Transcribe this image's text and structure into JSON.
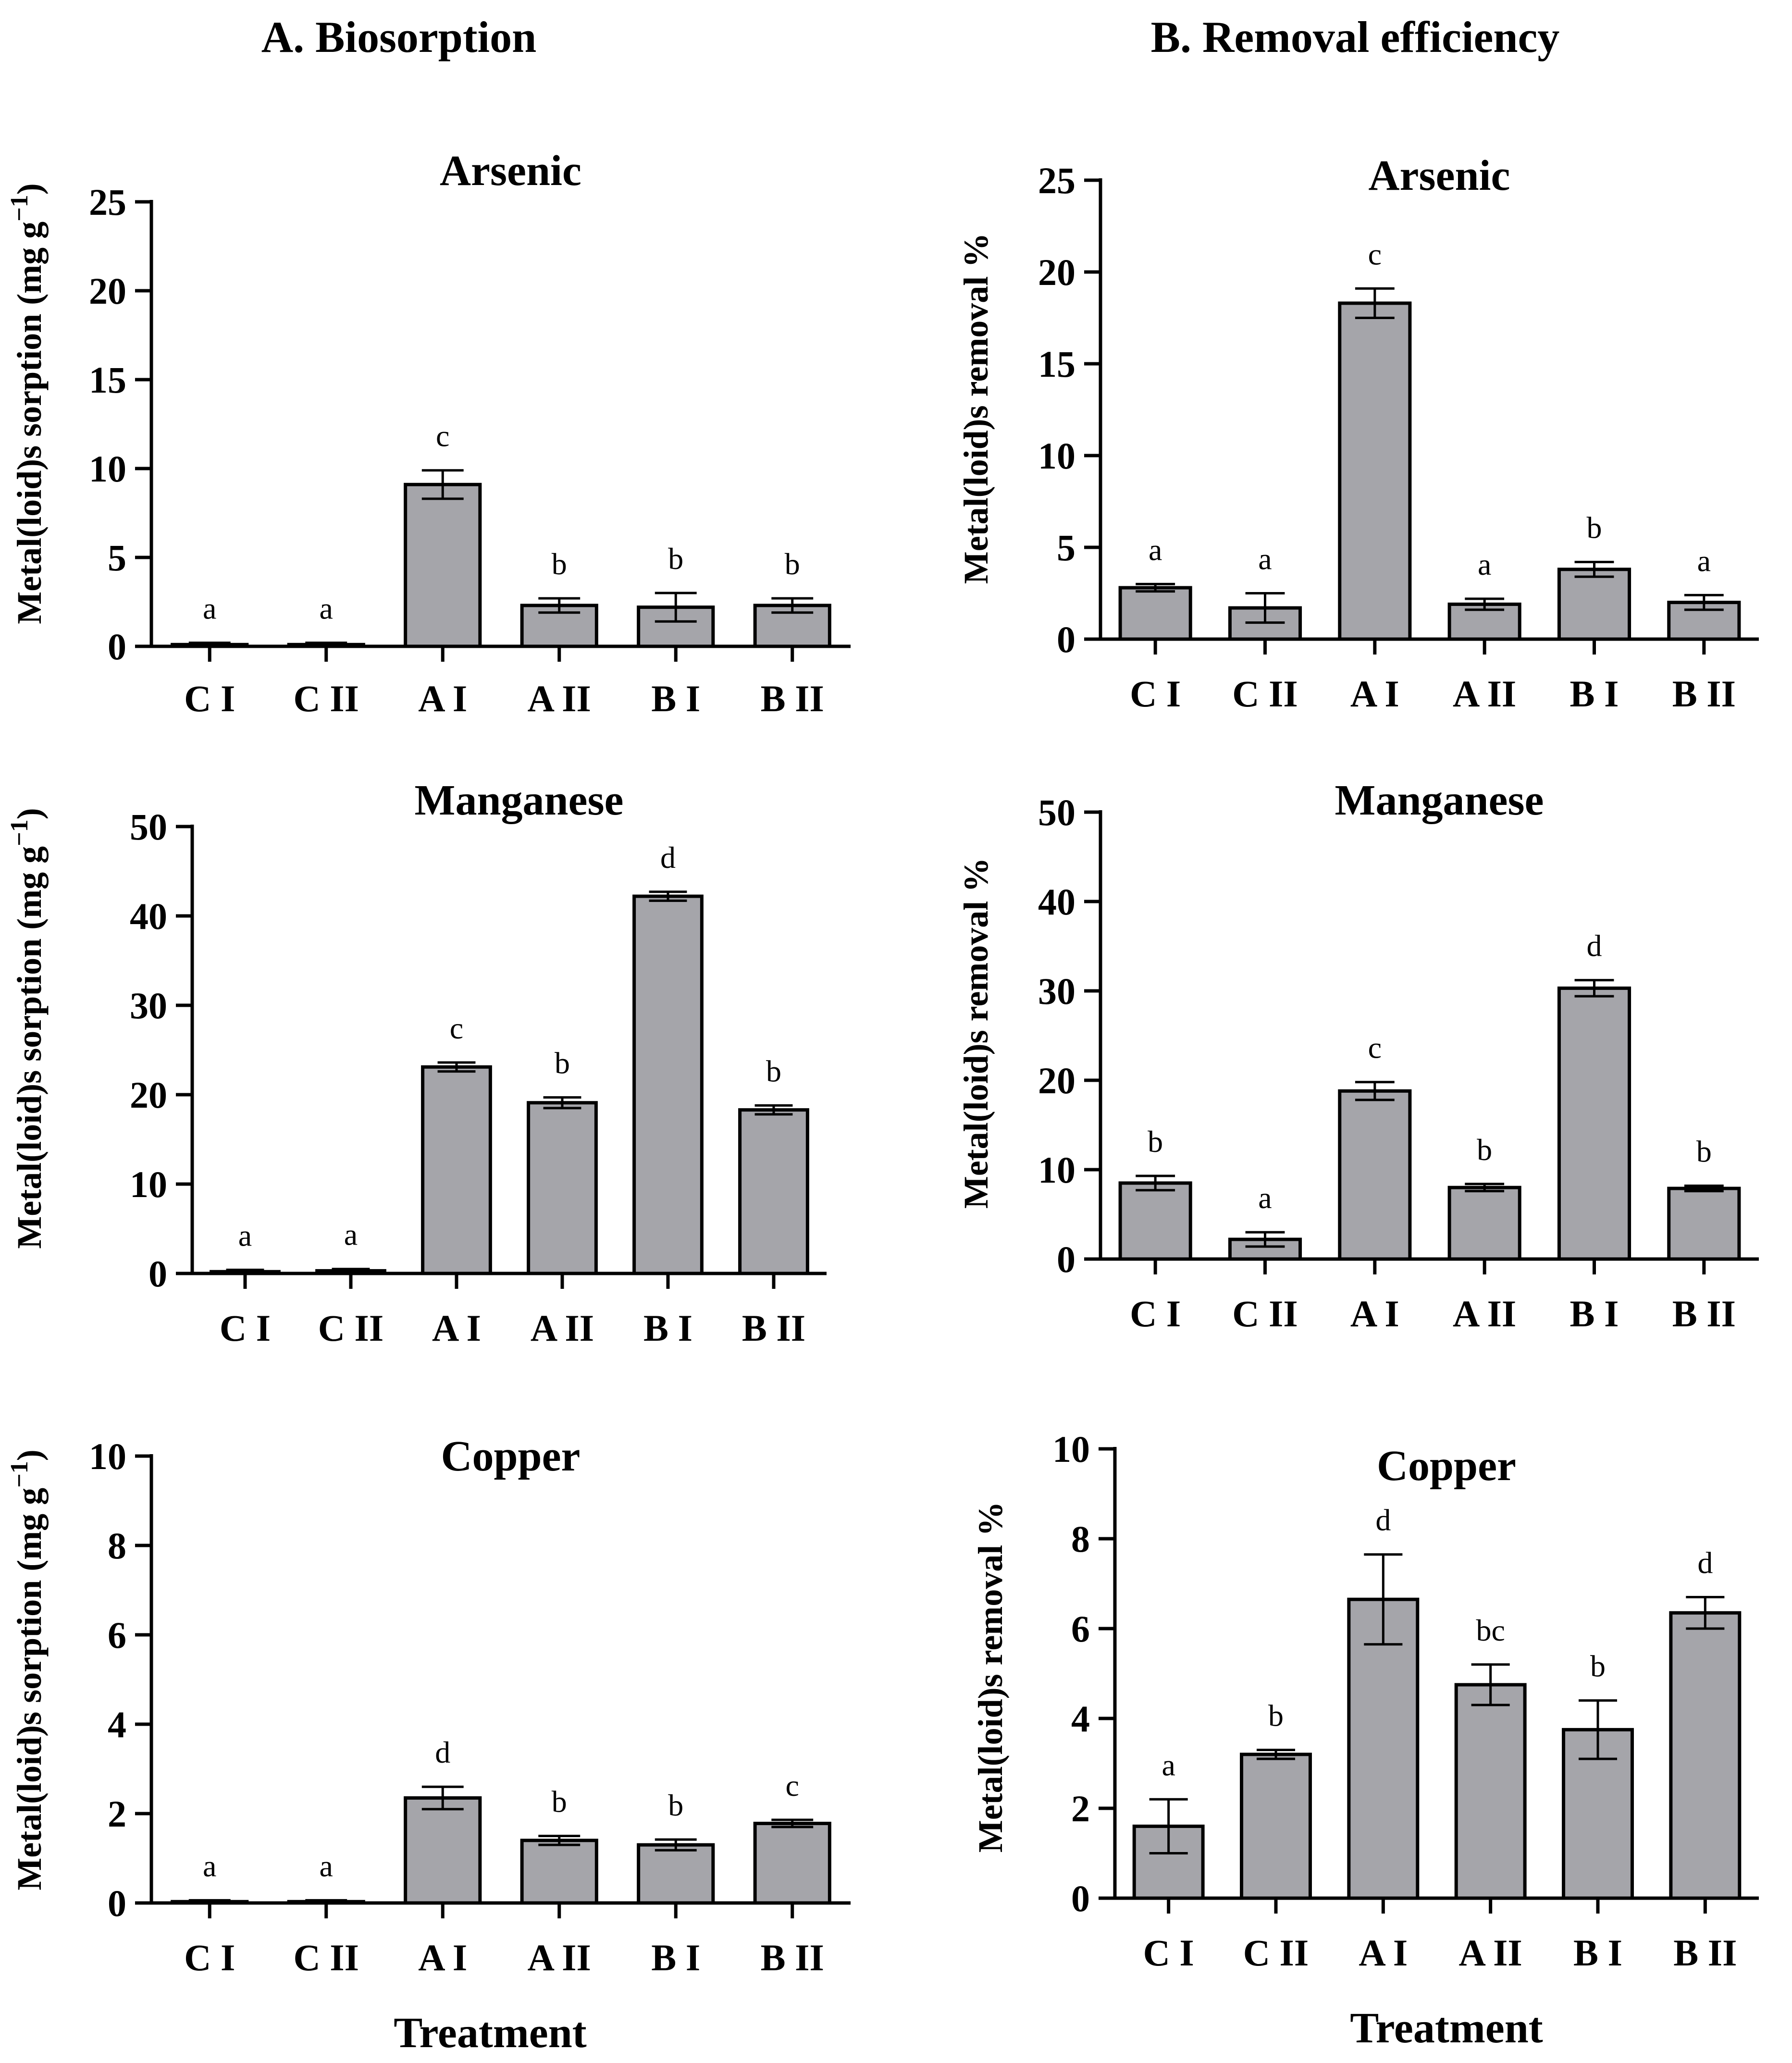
{
  "columns": [
    {
      "title": "A. Biosorption",
      "ylabel": "Metal(loid)s sorption (mg g",
      "ylabel_sup": "−1",
      "ylabel_end": ")",
      "xlabel": "Treatment"
    },
    {
      "title": "B. Removal efficiency",
      "ylabel": "Metal(loid)s removal %",
      "ylabel_sup": "",
      "ylabel_end": "",
      "xlabel": "Treatment"
    }
  ],
  "chart_data": [
    {
      "type": "bar",
      "title": "Arsenic",
      "xlabel": "",
      "ylabel": "Metal(loid)s sorption (mg g−1)",
      "categories": [
        "C I",
        "C II",
        "A I",
        "A II",
        "B I",
        "B II"
      ],
      "values": [
        0.1,
        0.1,
        9.1,
        2.3,
        2.2,
        2.3
      ],
      "errors": [
        0.1,
        0.1,
        0.8,
        0.4,
        0.8,
        0.4
      ],
      "letters": [
        "a",
        "a",
        "c",
        "b",
        "b",
        "b"
      ],
      "ylim": [
        0,
        25
      ],
      "yticks": [
        0,
        5,
        10,
        15,
        20,
        25
      ]
    },
    {
      "type": "bar",
      "title": "Manganese",
      "xlabel": "",
      "ylabel": "Metal(loid)s sorption (mg g−1)",
      "categories": [
        "C I",
        "C II",
        "A I",
        "A II",
        "B I",
        "B II"
      ],
      "values": [
        0.2,
        0.3,
        23.1,
        19.1,
        42.2,
        18.3
      ],
      "errors": [
        0.2,
        0.2,
        0.5,
        0.6,
        0.5,
        0.5
      ],
      "letters": [
        "a",
        "a",
        "c",
        "b",
        "d",
        "b"
      ],
      "ylim": [
        0,
        50
      ],
      "yticks": [
        0,
        10,
        20,
        30,
        40,
        50
      ]
    },
    {
      "type": "bar",
      "title": "Copper",
      "xlabel": "Treatment",
      "ylabel": "Metal(loid)s sorption (mg g−1)",
      "categories": [
        "C I",
        "C II",
        "A I",
        "A II",
        "B I",
        "B II"
      ],
      "values": [
        0.03,
        0.03,
        2.35,
        1.4,
        1.3,
        1.78
      ],
      "errors": [
        0.03,
        0.03,
        0.25,
        0.1,
        0.12,
        0.08
      ],
      "letters": [
        "a",
        "a",
        "d",
        "b",
        "b",
        "c"
      ],
      "ylim": [
        0,
        10
      ],
      "yticks": [
        0,
        2,
        4,
        6,
        8,
        10
      ]
    },
    {
      "type": "bar",
      "title": "Arsenic",
      "xlabel": "",
      "ylabel": "Metal(loid)s removal %",
      "categories": [
        "C I",
        "C II",
        "A I",
        "A II",
        "B I",
        "B II"
      ],
      "values": [
        2.8,
        1.7,
        18.3,
        1.9,
        3.8,
        2.0
      ],
      "errors": [
        0.2,
        0.8,
        0.8,
        0.3,
        0.4,
        0.4
      ],
      "letters": [
        "a",
        "a",
        "c",
        "a",
        "b",
        "a"
      ],
      "ylim": [
        0,
        25
      ],
      "yticks": [
        0,
        5,
        10,
        15,
        20,
        25
      ]
    },
    {
      "type": "bar",
      "title": "Manganese",
      "xlabel": "",
      "ylabel": "Metal(loid)s removal %",
      "categories": [
        "C I",
        "C II",
        "A I",
        "A II",
        "B I",
        "B II"
      ],
      "values": [
        8.5,
        2.2,
        18.8,
        8.0,
        30.3,
        7.9
      ],
      "errors": [
        0.8,
        0.8,
        1.0,
        0.4,
        0.9,
        0.3
      ],
      "letters": [
        "b",
        "a",
        "c",
        "b",
        "d",
        "b"
      ],
      "ylim": [
        0,
        50
      ],
      "yticks": [
        0,
        10,
        20,
        30,
        40,
        50
      ]
    },
    {
      "type": "bar",
      "title": "Copper",
      "xlabel": "Treatment",
      "ylabel": "Metal(loid)s removal %",
      "categories": [
        "C I",
        "C II",
        "A I",
        "A II",
        "B I",
        "B II"
      ],
      "values": [
        1.6,
        3.2,
        6.65,
        4.75,
        3.75,
        6.35
      ],
      "errors": [
        0.6,
        0.1,
        1.0,
        0.45,
        0.65,
        0.35
      ],
      "letters": [
        "a",
        "b",
        "d",
        "bc",
        "b",
        "d"
      ],
      "ylim": [
        0,
        10
      ],
      "yticks": [
        0,
        2,
        4,
        6,
        8,
        10
      ]
    }
  ]
}
